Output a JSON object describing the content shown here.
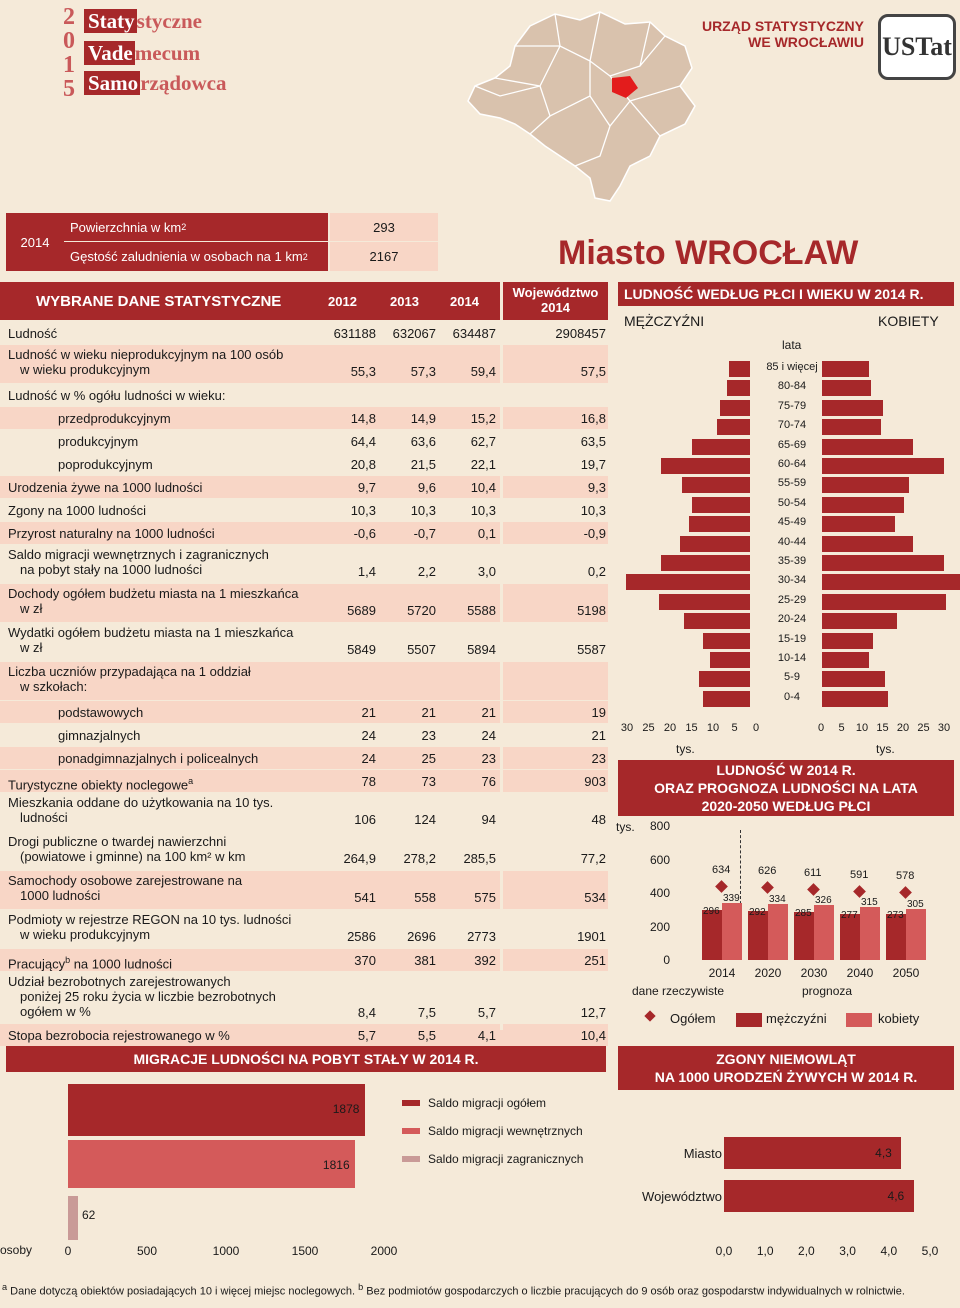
{
  "header": {
    "year_digits": [
      "2",
      "0",
      "1",
      "5"
    ],
    "title_lines": [
      {
        "dark": "Staty",
        "light": "styczne"
      },
      {
        "dark": "Vade",
        "light": "mecum"
      },
      {
        "dark": "Samo",
        "light": "rządowca"
      }
    ],
    "office_line1": "URZĄD STATYSTYCZNY",
    "office_line2": "WE WROCŁAWIU",
    "logo_text": "USTat"
  },
  "area": {
    "year": "2014",
    "area_label": "Powierzchnia w km",
    "area_sup": "2",
    "area_value": "293",
    "density_label": "Gęstość zaludnienia w osobach na 1 km",
    "density_sup": "2",
    "density_value": "2167"
  },
  "city_title": "Miasto WROCŁAW",
  "table": {
    "title": "WYBRANE DANE STATYSTYCZNE",
    "col1": "2012",
    "col2": "2013",
    "col3": "2014",
    "col4_line1": "Województwo",
    "col4_line2": "2014",
    "rows": [
      {
        "l1": "Ludność",
        "l2": "",
        "v": [
          "631188",
          "632067",
          "634487",
          "2908457"
        ]
      },
      {
        "l1": "Ludność w wieku nieprodukcyjnym na 100 osób",
        "l2": "w wieku produkcyjnym",
        "v": [
          "55,3",
          "57,3",
          "59,4",
          "57,5"
        ]
      },
      {
        "l1": "Ludność w % ogółu ludności w wieku:",
        "l2": "",
        "v": [
          "",
          "",
          "",
          ""
        ]
      },
      {
        "l1": "przedprodukcyjnym",
        "l2": "",
        "v": [
          "14,8",
          "14,9",
          "15,2",
          "16,8"
        ]
      },
      {
        "l1": "produkcyjnym",
        "l2": "",
        "v": [
          "64,4",
          "63,6",
          "62,7",
          "63,5"
        ]
      },
      {
        "l1": "poprodukcyjnym",
        "l2": "",
        "v": [
          "20,8",
          "21,5",
          "22,1",
          "19,7"
        ]
      },
      {
        "l1": "Urodzenia żywe na 1000 ludności",
        "l2": "",
        "v": [
          "9,7",
          "9,6",
          "10,4",
          "9,3"
        ]
      },
      {
        "l1": "Zgony na 1000 ludności",
        "l2": "",
        "v": [
          "10,3",
          "10,3",
          "10,3",
          "10,3"
        ]
      },
      {
        "l1": "Przyrost naturalny na 1000 ludności",
        "l2": "",
        "v": [
          "-0,6",
          "-0,7",
          "0,1",
          "-0,9"
        ]
      },
      {
        "l1": "Saldo migracji wewnętrznych i zagranicznych",
        "l2": "na pobyt stały na 1000 ludności",
        "v": [
          "1,4",
          "2,2",
          "3,0",
          "0,2"
        ]
      },
      {
        "l1": "Dochody ogółem budżetu miasta na 1 mieszkańca",
        "l2": "w zł",
        "v": [
          "5689",
          "5720",
          "5588",
          "5198"
        ]
      },
      {
        "l1": "Wydatki ogółem budżetu miasta na 1 mieszkańca",
        "l2": "w zł",
        "v": [
          "5849",
          "5507",
          "5894",
          "5587"
        ]
      },
      {
        "l1": "Liczba uczniów przypadająca na 1 oddział",
        "l2": "w szkołach:",
        "v": [
          "",
          "",
          "",
          ""
        ]
      },
      {
        "l1": "podstawowych",
        "l2": "",
        "v": [
          "21",
          "21",
          "21",
          "19"
        ]
      },
      {
        "l1": "gimnazjalnych",
        "l2": "",
        "v": [
          "24",
          "23",
          "24",
          "21"
        ]
      },
      {
        "l1": "ponadgimnazjalnych i policealnych",
        "l2": "",
        "v": [
          "24",
          "25",
          "23",
          "23"
        ]
      },
      {
        "l1": "Turystyczne obiekty noclegowe",
        "sup": "a",
        "l2": "",
        "v": [
          "78",
          "73",
          "76",
          "903"
        ]
      },
      {
        "l1": "Mieszkania oddane do użytkowania na 10 tys.",
        "l2": "ludności",
        "v": [
          "106",
          "124",
          "94",
          "48"
        ]
      },
      {
        "l1": "Drogi publiczne o twardej nawierzchni",
        "l2": "(powiatowe i gminne) na 100 km² w km",
        "v": [
          "264,9",
          "278,2",
          "285,5",
          "77,2"
        ]
      },
      {
        "l1": "Samochody osobowe zarejestrowane na",
        "l2": "1000 ludności",
        "v": [
          "541",
          "558",
          "575",
          "534"
        ]
      },
      {
        "l1": "Podmioty w rejestrze REGON na 10 tys. ludności",
        "l2": "w wieku produkcyjnym",
        "v": [
          "2586",
          "2696",
          "2773",
          "1901"
        ]
      },
      {
        "l1": "Pracujący",
        "sup": "b",
        "l1b": " na 1000 ludności",
        "l2": "",
        "v": [
          "370",
          "381",
          "392",
          "251"
        ]
      },
      {
        "l1": "Udział bezrobotnych zarejestrowanych",
        "l2": "poniżej 25 roku życia w liczbie bezrobotnych",
        "l3": "ogółem w %",
        "v": [
          "8,4",
          "7,5",
          "5,7",
          "12,7"
        ]
      },
      {
        "l1": "Stopa bezrobocia rejestrowanego w %",
        "l2": "",
        "v": [
          "5,7",
          "5,5",
          "4,1",
          "10,4"
        ]
      }
    ]
  },
  "chart_data": [
    {
      "type": "bar",
      "title": "LUDNOŚĆ WEDŁUG PŁCI I WIEKU W 2014 R.",
      "left_label": "MĘŻCZYŹNI",
      "right_label": "KOBIETY",
      "age_axis_label": "lata",
      "unit_left": "tys.",
      "unit_right": "tys.",
      "categories": [
        "85 i więcej",
        "80-84",
        "75-79",
        "70-74",
        "65-69",
        "60-64",
        "55-59",
        "50-54",
        "45-49",
        "40-44",
        "35-39",
        "30-34",
        "25-29",
        "20-24",
        "15-19",
        "10-14",
        "5-9",
        "0-4"
      ],
      "series": [
        {
          "name": "MĘŻCZYŹNI",
          "values": [
            4.5,
            5.0,
            6.5,
            7.0,
            12.5,
            19.0,
            14.5,
            12.5,
            13.0,
            15.0,
            19.0,
            26.5,
            19.5,
            14.0,
            10.0,
            8.5,
            11.0,
            10.0
          ]
        },
        {
          "name": "KOBIETY",
          "values": [
            10.0,
            10.5,
            13.0,
            12.5,
            19.5,
            26.0,
            18.5,
            17.5,
            15.5,
            19.5,
            26.0,
            30.0,
            26.5,
            16.0,
            11.0,
            10.0,
            13.5,
            14.0
          ]
        }
      ],
      "ticks_left": [
        "30",
        "25",
        "20",
        "15",
        "10",
        "5",
        "0"
      ],
      "ticks_right": [
        "0",
        "5",
        "10",
        "15",
        "20",
        "25",
        "30"
      ],
      "xlim": [
        0,
        30
      ]
    },
    {
      "type": "bar",
      "title_line1": "LUDNOŚĆ W 2014 R.",
      "title_line2": "ORAZ PROGNOZA LUDNOŚCI NA LATA",
      "title_line3": "2020-2050 WEDŁUG PŁCI",
      "yunit": "tys.",
      "categories": [
        "2014",
        "2020",
        "2030",
        "2040",
        "2050"
      ],
      "series": [
        {
          "name": "Ogółem",
          "values": [
            634,
            626,
            611,
            591,
            578
          ]
        },
        {
          "name": "mężczyźni",
          "values": [
            296,
            292,
            285,
            277,
            273
          ]
        },
        {
          "name": "kobiety",
          "values": [
            339,
            334,
            326,
            315,
            305
          ]
        }
      ],
      "yticks": [
        "800",
        "600",
        "400",
        "200",
        "0"
      ],
      "ylim": [
        0,
        800
      ],
      "group_labels": [
        "dane rzeczywiste",
        "prognoza"
      ],
      "colors": {
        "men": "#a6282a",
        "women": "#d45a5a",
        "total": "#a6282a"
      }
    },
    {
      "type": "bar",
      "title": "MIGRACJE LUDNOŚCI NA POBYT STAŁY W 2014 R.",
      "series": [
        {
          "name": "Saldo migracji ogółem",
          "values": [
            1878
          ],
          "color": "#a6282a"
        },
        {
          "name": "Saldo migracji wewnętrznych",
          "values": [
            1816
          ],
          "color": "#d45a5a"
        },
        {
          "name": "Saldo migracji zagranicznych",
          "values": [
            62
          ],
          "color": "#c99a97"
        }
      ],
      "xlabel": "osoby",
      "xticks": [
        "0",
        "500",
        "1000",
        "1500",
        "2000"
      ],
      "xlim": [
        0,
        2000
      ]
    },
    {
      "type": "bar",
      "title_line1": "ZGONY NIEMOWLĄT",
      "title_line2": "NA 1000 URODZEŃ ŻYWYCH W 2014 R.",
      "categories": [
        "Miasto",
        "Województwo"
      ],
      "values": [
        4.3,
        4.6
      ],
      "labels": [
        "4,3",
        "4,6"
      ],
      "xticks": [
        "0,0",
        "1,0",
        "2,0",
        "3,0",
        "4,0",
        "5,0"
      ],
      "xlim": [
        0,
        5
      ]
    }
  ],
  "footnote": {
    "a_mark": "a",
    "a_text": "Dane dotyczą obiektów posiadających 10 i więcej miejsc noclegowych.",
    "b_mark": "b",
    "b_text": "Bez podmiotów gospodarczych o liczbie pracujących do 9 osób oraz gospodarstw indywidualnych w rolnictwie."
  }
}
